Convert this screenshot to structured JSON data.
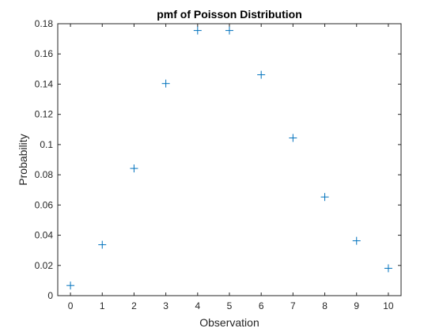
{
  "chart_data": {
    "type": "scatter",
    "title": "pmf of Poisson Distribution",
    "xlabel": "Observation",
    "ylabel": "Probability",
    "xlim": [
      -0.4,
      10.4
    ],
    "ylim": [
      0,
      0.18
    ],
    "xticks": [
      0,
      1,
      2,
      3,
      4,
      5,
      6,
      7,
      8,
      9,
      10
    ],
    "xtick_labels": [
      "0",
      "1",
      "2",
      "3",
      "4",
      "5",
      "6",
      "7",
      "8",
      "9",
      "10"
    ],
    "yticks": [
      0,
      0.02,
      0.04,
      0.06,
      0.08,
      0.1,
      0.12,
      0.14,
      0.16,
      0.18
    ],
    "ytick_labels": [
      "0",
      "0.02",
      "0.04",
      "0.06",
      "0.08",
      "0.1",
      "0.12",
      "0.14",
      "0.16",
      "0.18"
    ],
    "grid": false,
    "marker": "+",
    "series": [
      {
        "x": [
          0,
          1,
          2,
          3,
          4,
          5,
          6,
          7,
          8,
          9,
          10
        ],
        "y": [
          0.0067,
          0.0337,
          0.0842,
          0.1404,
          0.1755,
          0.1755,
          0.1462,
          0.1044,
          0.0653,
          0.0363,
          0.0181
        ],
        "color": "#0072BD"
      }
    ],
    "axis_color": "#262626"
  }
}
